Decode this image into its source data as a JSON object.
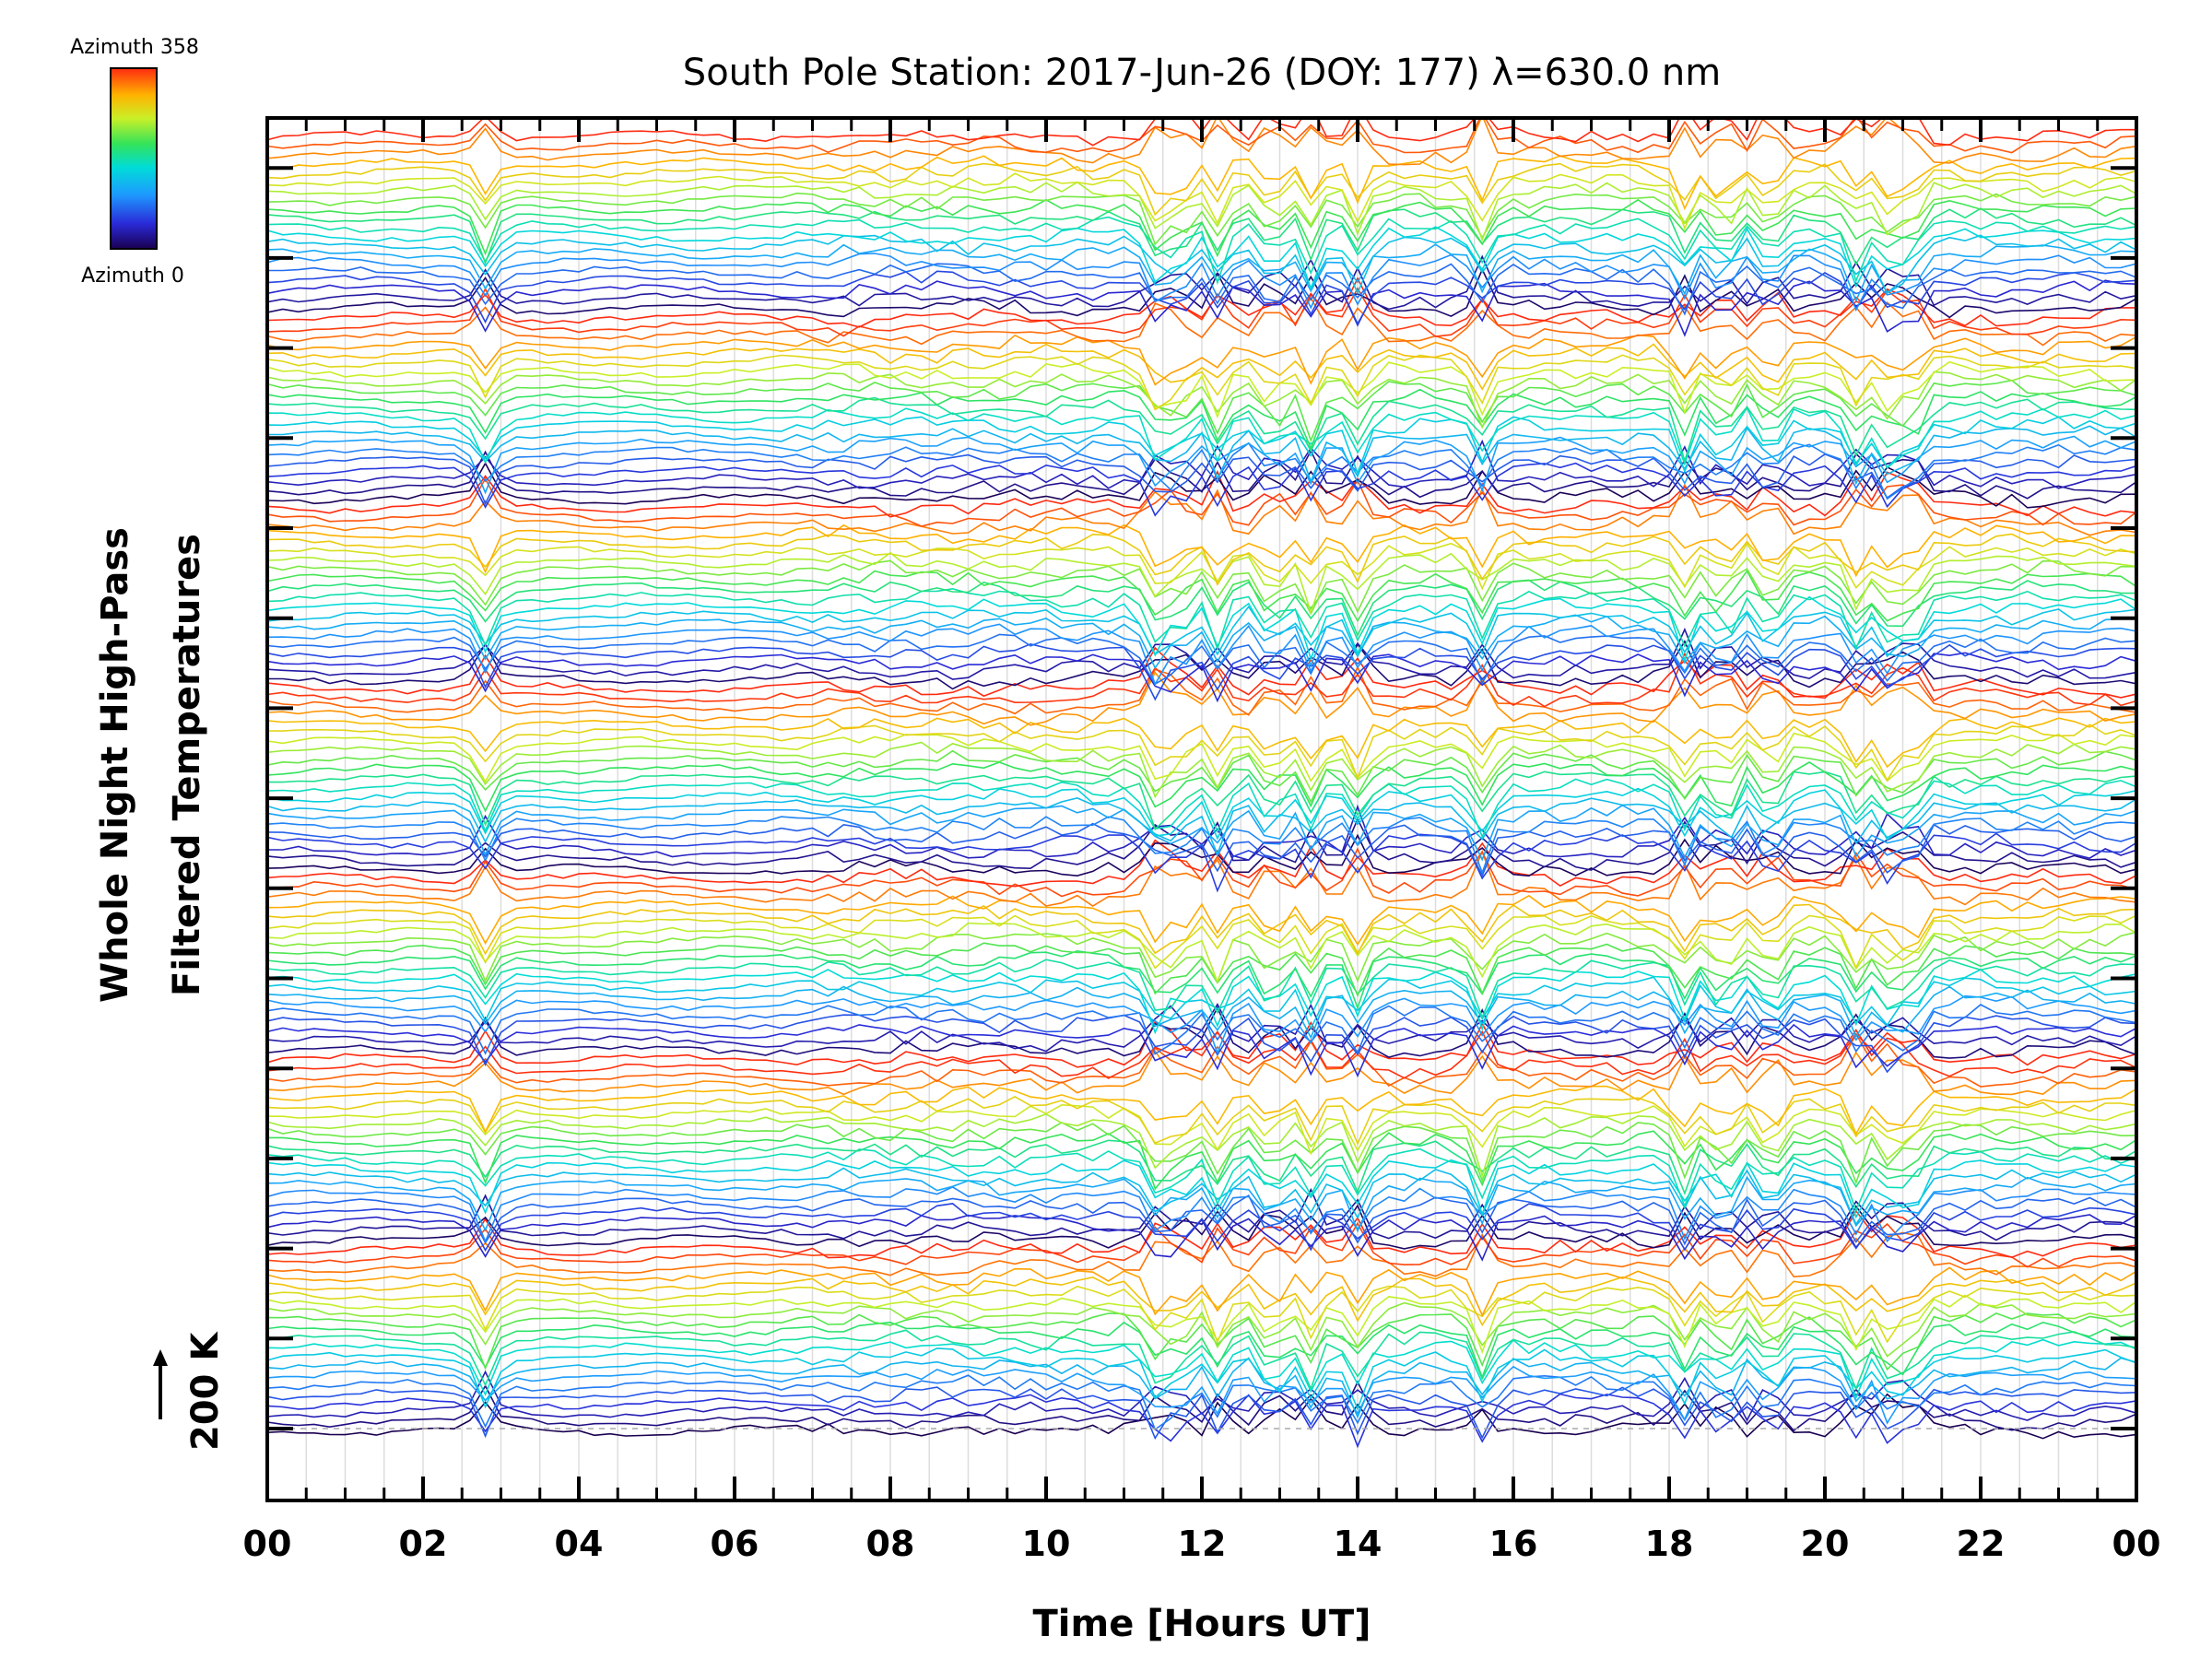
{
  "chart_data": {
    "type": "line",
    "title": "South Pole Station: 2017-Jun-26 (DOY: 177) λ=630.0 nm",
    "xlabel": "Time [Hours UT]",
    "ylabel": [
      "Whole Night High-Pass",
      "Filtered Temperatures"
    ],
    "xlim": [
      0,
      24
    ],
    "x_ticks": [
      "00",
      "02",
      "04",
      "06",
      "08",
      "10",
      "12",
      "14",
      "16",
      "18",
      "20",
      "22",
      "00"
    ],
    "scale_bar": {
      "label": "200 K",
      "value": 200
    },
    "colorbar": {
      "top_label": "Azimuth 358",
      "bottom_label": "Azimuth 0",
      "min": 0,
      "max": 358
    },
    "series_count": 144,
    "series_groups": 7,
    "series_offset_step": 20,
    "event_times": [
      2.8,
      11.4,
      11.7,
      12.2,
      12.9,
      13.4,
      14.0,
      15.6,
      18.2,
      18.7,
      19.3,
      20.4,
      20.8,
      21.1
    ],
    "grid": true
  }
}
